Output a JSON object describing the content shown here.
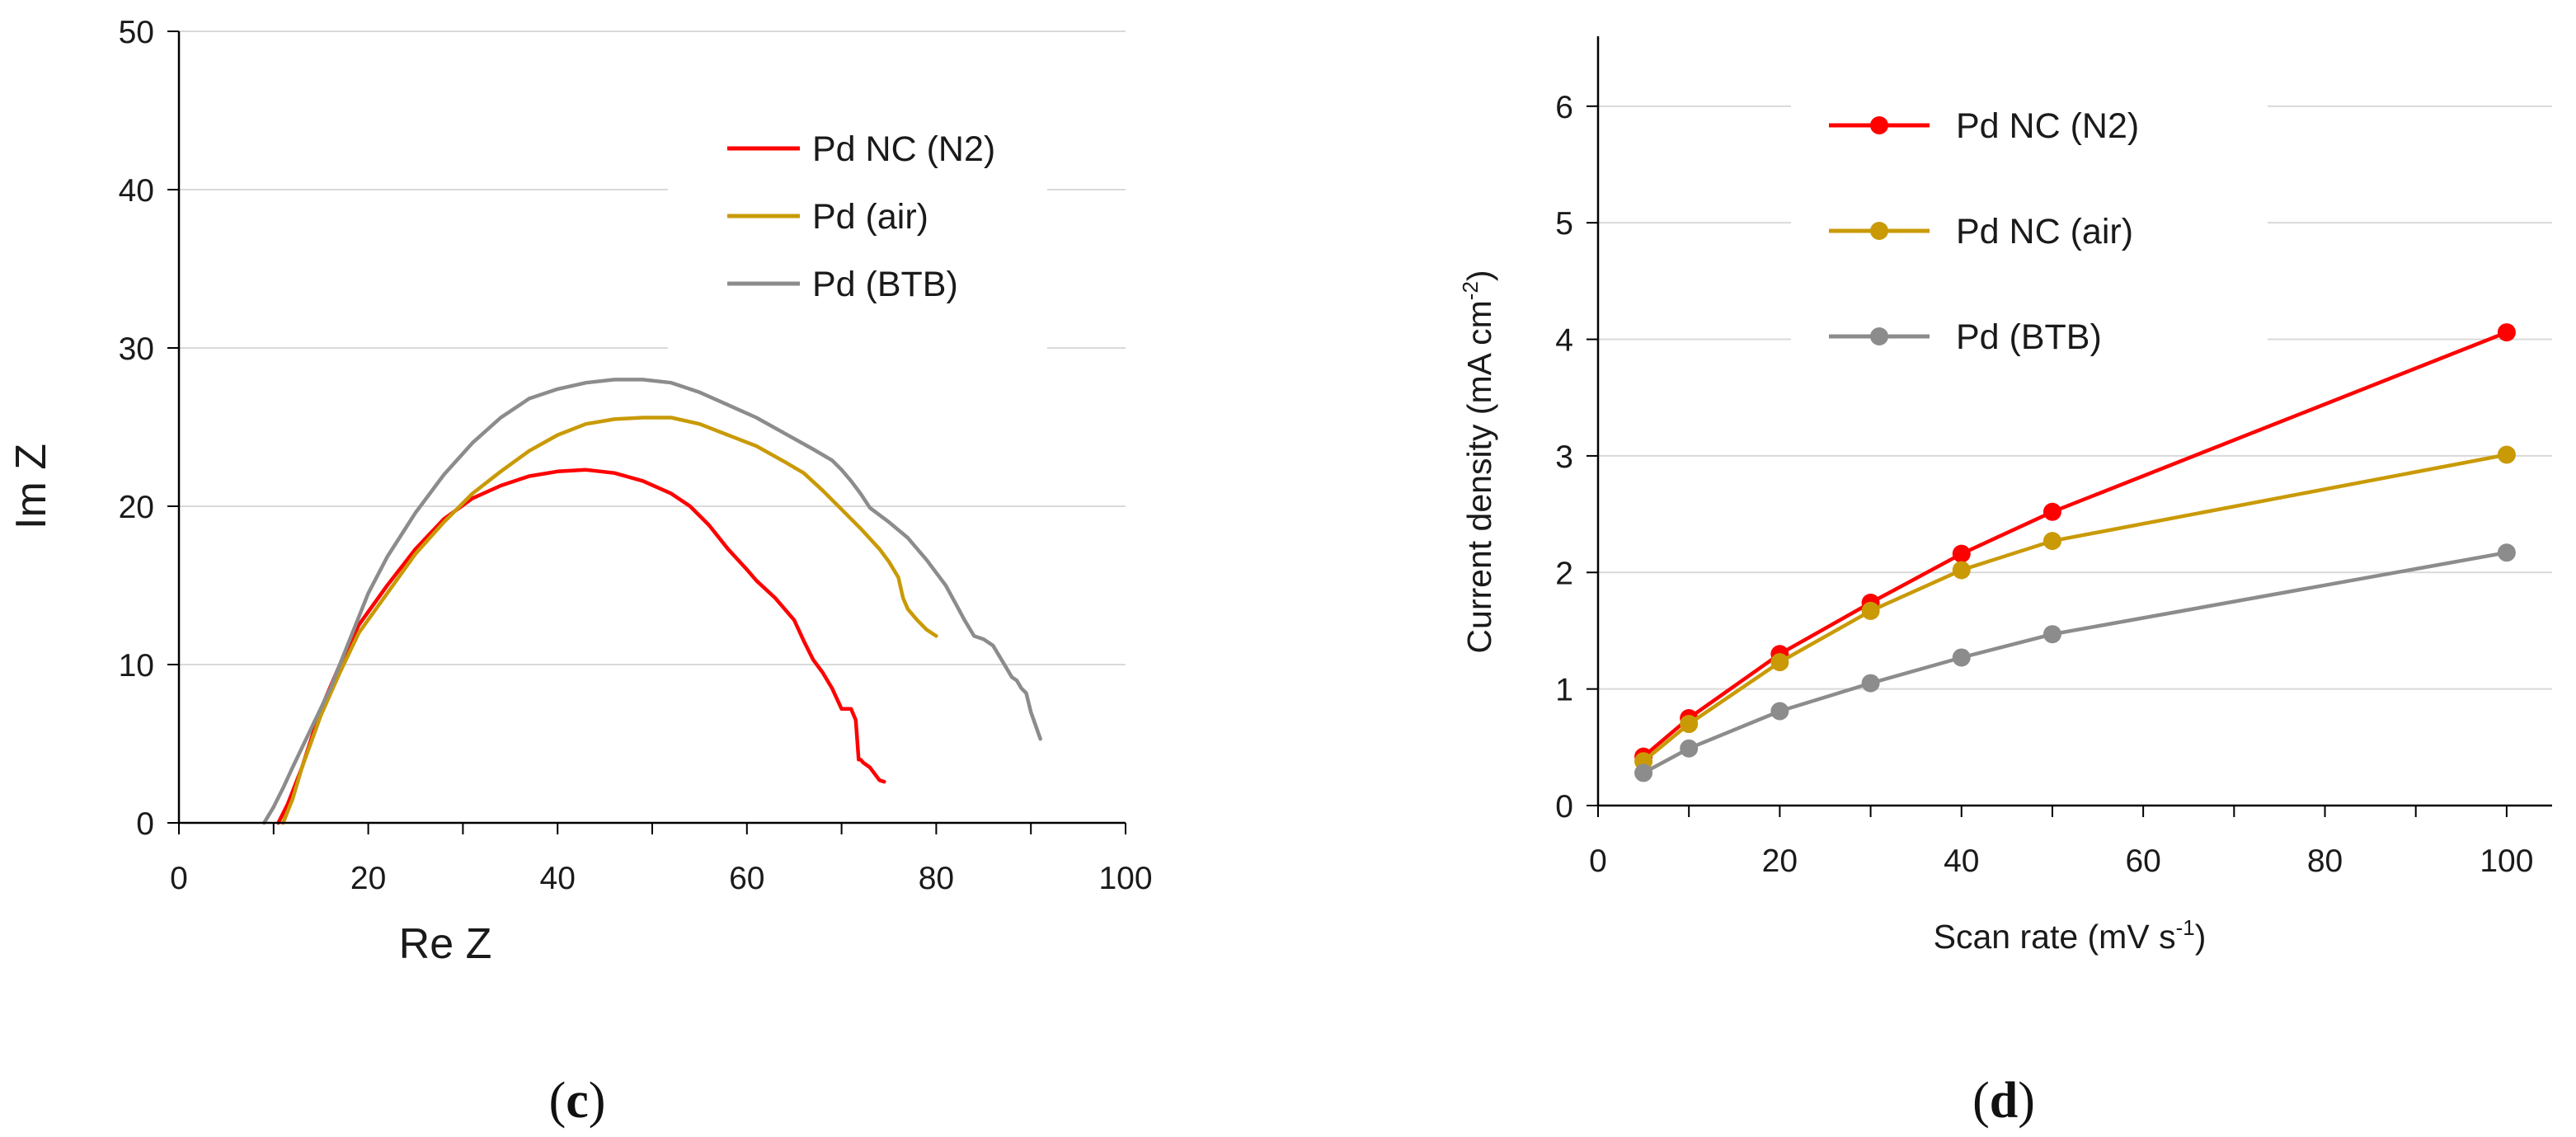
{
  "chart_data": [
    {
      "type": "line",
      "panel_label_open": "(",
      "panel_label_letter": "c",
      "panel_label_close": ")",
      "xlabel": "Re Z",
      "ylabel": "Im Z",
      "xlim": [
        0,
        100
      ],
      "ylim": [
        0,
        50
      ],
      "xticks": [
        "0",
        "20",
        "40",
        "60",
        "80",
        "100"
      ],
      "yticks": [
        "0",
        "10",
        "20",
        "30",
        "40",
        "50"
      ],
      "grid": true,
      "legend_position": "top-right",
      "series": [
        {
          "name": "Pd NC (N2)",
          "color": "#ff0000",
          "x": [
            10.5,
            11.5,
            13,
            15,
            17,
            19,
            22,
            25,
            28,
            31,
            34,
            37,
            40,
            43,
            46,
            49,
            52,
            54,
            56,
            58,
            60,
            61,
            63,
            65,
            66,
            67,
            68,
            69,
            70,
            70.5,
            71,
            71.5,
            71.8,
            72,
            72.3,
            73,
            74,
            74.5
          ],
          "y": [
            0,
            1.2,
            3.5,
            7.2,
            10,
            12.5,
            15,
            17.3,
            19.2,
            20.5,
            21.3,
            21.9,
            22.2,
            22.3,
            22.1,
            21.6,
            20.8,
            20,
            18.8,
            17.3,
            16,
            15.3,
            14.2,
            12.8,
            11.5,
            10.3,
            9.5,
            8.5,
            7.2,
            7.2,
            7.2,
            6.5,
            4,
            4,
            3.8,
            3.5,
            2.7,
            2.6
          ]
        },
        {
          "name": "Pd (air)",
          "color": "#c99a06",
          "x": [
            11,
            12,
            13,
            15,
            17,
            19,
            22,
            25,
            28,
            31,
            34,
            37,
            40,
            43,
            46,
            49,
            52,
            55,
            58,
            61,
            64,
            66,
            68,
            70,
            72,
            74,
            75,
            76,
            76.5,
            77,
            78,
            79,
            80
          ],
          "y": [
            0,
            1.5,
            3.5,
            6.8,
            9.5,
            12,
            14.5,
            17,
            19,
            20.8,
            22.2,
            23.5,
            24.5,
            25.2,
            25.5,
            25.6,
            25.6,
            25.2,
            24.5,
            23.8,
            22.8,
            22.1,
            21,
            19.8,
            18.6,
            17.3,
            16.5,
            15.5,
            14.2,
            13.5,
            12.8,
            12.2,
            11.8
          ]
        },
        {
          "name": "Pd (BTB)",
          "color": "#8c8c8c",
          "x": [
            9,
            10,
            11,
            12,
            14,
            16,
            18,
            20,
            22,
            25,
            28,
            31,
            34,
            37,
            40,
            43,
            46,
            49,
            52,
            55,
            58,
            61,
            64,
            67,
            69,
            70,
            71,
            72,
            73,
            75,
            77,
            79,
            81,
            82,
            83,
            84,
            85,
            86,
            87,
            88,
            88.5,
            89,
            89.5,
            90,
            91
          ],
          "y": [
            0,
            1,
            2.2,
            3.5,
            6,
            8.5,
            11.5,
            14.5,
            16.8,
            19.6,
            22,
            24,
            25.6,
            26.8,
            27.4,
            27.8,
            28,
            28,
            27.8,
            27.2,
            26.4,
            25.6,
            24.6,
            23.6,
            22.9,
            22.3,
            21.6,
            20.8,
            19.9,
            19,
            18,
            16.6,
            15,
            13.9,
            12.8,
            11.8,
            11.6,
            11.2,
            10.2,
            9.2,
            9,
            8.5,
            8.2,
            7,
            5.3
          ]
        }
      ]
    },
    {
      "type": "line",
      "panel_label_open": "(",
      "panel_label_letter": "d",
      "panel_label_close": ")",
      "xlabel": "Scan rate (mV s",
      "xlabel_superscript": "-1",
      "xlabel_close": ")",
      "ylabel": "Current density (mA cm",
      "ylabel_superscript": "-2",
      "ylabel_close": ")",
      "xlim": [
        0,
        105
      ],
      "ylim": [
        0,
        6.6
      ],
      "xticks": [
        "0",
        "20",
        "40",
        "60",
        "80",
        "100"
      ],
      "yticks": [
        "0",
        "1",
        "2",
        "3",
        "4",
        "5",
        "6"
      ],
      "grid": true,
      "markers": true,
      "legend_position": "top-center",
      "x": [
        5,
        10,
        20,
        30,
        40,
        50,
        100
      ],
      "series": [
        {
          "name": "Pd NC (N2)",
          "color": "#ff0000",
          "values": [
            0.42,
            0.75,
            1.3,
            1.74,
            2.16,
            2.52,
            4.06
          ]
        },
        {
          "name": "Pd NC (air)",
          "color": "#c99a06",
          "values": [
            0.38,
            0.7,
            1.23,
            1.67,
            2.02,
            2.27,
            3.01
          ]
        },
        {
          "name": "Pd (BTB)",
          "color": "#8c8c8c",
          "values": [
            0.28,
            0.49,
            0.81,
            1.05,
            1.27,
            1.47,
            2.17
          ]
        }
      ]
    }
  ]
}
